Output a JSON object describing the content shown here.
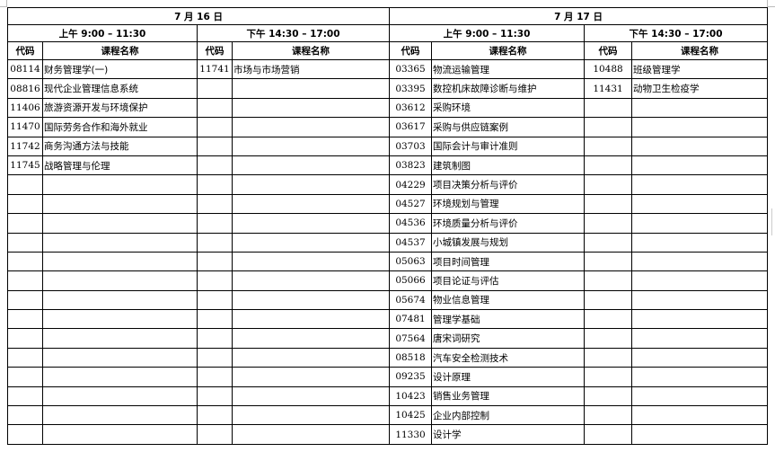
{
  "days": [
    {
      "date": "7 月 16 日",
      "am_label": "上午 9:00 – 11:30",
      "pm_label": "下午 14:30 – 17:00",
      "am": [
        {
          "code": "08114",
          "name": "财务管理学(一)"
        },
        {
          "code": "08816",
          "name": "现代企业管理信息系统"
        },
        {
          "code": "11406",
          "name": "旅游资源开发与环境保护"
        },
        {
          "code": "11470",
          "name": "国际劳务合作和海外就业"
        },
        {
          "code": "11742",
          "name": "商务沟通方法与技能"
        },
        {
          "code": "11745",
          "name": "战略管理与伦理"
        }
      ],
      "pm": [
        {
          "code": "11741",
          "name": "市场与市场营销"
        }
      ]
    },
    {
      "date": "7 月 17 日",
      "am_label": "上午 9:00 – 11:30",
      "pm_label": "下午 14:30 – 17:00",
      "am": [
        {
          "code": "03365",
          "name": "物流运输管理"
        },
        {
          "code": "03395",
          "name": "数控机床故障诊断与维护"
        },
        {
          "code": "03612",
          "name": "采购环境"
        },
        {
          "code": "03617",
          "name": "采购与供应链案例"
        },
        {
          "code": "03703",
          "name": "国际会计与审计准则"
        },
        {
          "code": "03823",
          "name": "建筑制图"
        },
        {
          "code": "04229",
          "name": "项目决策分析与评价"
        },
        {
          "code": "04527",
          "name": "环境规划与管理"
        },
        {
          "code": "04536",
          "name": "环境质量分析与评价"
        },
        {
          "code": "04537",
          "name": "小城镇发展与规划"
        },
        {
          "code": "05063",
          "name": "项目时间管理"
        },
        {
          "code": "05066",
          "name": "项目论证与评估"
        },
        {
          "code": "05674",
          "name": "物业信息管理"
        },
        {
          "code": "07481",
          "name": "管理学基础"
        },
        {
          "code": "07564",
          "name": "唐宋词研究"
        },
        {
          "code": "08518",
          "name": "汽车安全检测技术"
        },
        {
          "code": "09235",
          "name": "设计原理"
        },
        {
          "code": "10423",
          "name": "销售业务管理"
        },
        {
          "code": "10425",
          "name": "企业内部控制"
        },
        {
          "code": "11330",
          "name": "设计学"
        }
      ],
      "pm": [
        {
          "code": "10488",
          "name": "班级管理学"
        },
        {
          "code": "11431",
          "name": "动物卫生检疫学"
        }
      ]
    }
  ],
  "headers": {
    "code": "代码",
    "name": "课程名称"
  }
}
